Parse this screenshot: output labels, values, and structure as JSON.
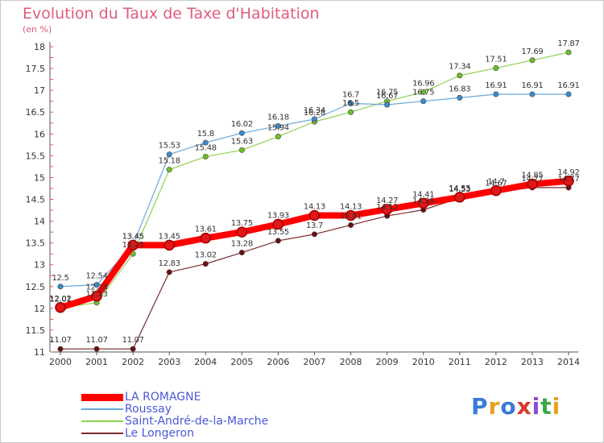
{
  "header": {
    "title": "Evolution du Taux de Taxe d'Habitation",
    "subtitle": "(en %)"
  },
  "logo": {
    "text": "Proxiti",
    "colors": [
      "#3a7bd5",
      "#e8a020",
      "#3a7bd5",
      "#d83a2a",
      "#8a4ad0",
      "#3aa848",
      "#e8a020"
    ]
  },
  "chart_data": {
    "type": "line",
    "title": "Evolution du Taux de Taxe d'Habitation",
    "subtitle": "(en %)",
    "x": [
      2000,
      2001,
      2002,
      2003,
      2004,
      2005,
      2006,
      2007,
      2008,
      2009,
      2010,
      2011,
      2012,
      2013,
      2014
    ],
    "ylim": [
      11,
      18
    ],
    "yticks": [
      11,
      11.5,
      12,
      12.5,
      13,
      13.5,
      14,
      14.5,
      15,
      15.5,
      16,
      16.5,
      17,
      17.5,
      18
    ],
    "grid": false,
    "legend_position": "bottom",
    "series": [
      {
        "name": "LA ROMAGNE",
        "color": "#ff0000",
        "values": [
          12.02,
          12.28,
          13.45,
          13.45,
          13.61,
          13.75,
          13.93,
          14.13,
          14.13,
          14.27,
          14.41,
          14.55,
          14.7,
          14.85,
          14.92
        ],
        "labels": [
          "12.02",
          "12.28",
          "13.45",
          "13.45",
          "13.61",
          "13.75",
          "13.93",
          "14.13",
          "14.13",
          "14.27",
          "14.41",
          "14.55",
          "14.7",
          "14.85",
          "14.92"
        ]
      },
      {
        "name": "Roussay",
        "color": "#6aa8d8",
        "values": [
          12.5,
          12.54,
          13.45,
          15.53,
          15.8,
          16.02,
          16.18,
          16.34,
          16.7,
          16.67,
          16.75,
          16.83,
          16.91,
          16.91,
          16.91
        ],
        "labels": [
          "12.5",
          "12.54",
          "13.45",
          "15.53",
          "15.8",
          "16.02",
          "16.18",
          "16.34",
          "16.7",
          "16.67",
          "16.75",
          "16.83",
          "16.91",
          "16.91",
          "16.91"
        ]
      },
      {
        "name": "Saint-André-de-la-Marche",
        "color": "#8cd050",
        "values": [
          12.01,
          12.13,
          13.25,
          15.18,
          15.48,
          15.63,
          15.94,
          16.28,
          16.5,
          16.75,
          16.96,
          17.34,
          17.51,
          17.69,
          17.87
        ],
        "labels": [
          "12.01",
          "12.13",
          "13.25",
          "15.18",
          "15.48",
          "15.63",
          "15.94",
          "16.28",
          "16.5",
          "16.75",
          "16.96",
          "17.34",
          "17.51",
          "17.69",
          "17.87"
        ]
      },
      {
        "name": "Le Longeron",
        "color": "#7a2a2a",
        "values": [
          11.07,
          11.07,
          11.07,
          12.83,
          13.02,
          13.28,
          13.55,
          13.7,
          13.91,
          14.12,
          14.26,
          14.53,
          14.67,
          14.77,
          14.77
        ],
        "labels": [
          "11.07",
          "11.07",
          "11.07",
          "12.83",
          "13.02",
          "13.28",
          "13.55",
          "13.7",
          "13.91",
          "14.12",
          "14.26",
          "14.53",
          "14.67",
          "14.77",
          "14.77"
        ]
      }
    ]
  }
}
